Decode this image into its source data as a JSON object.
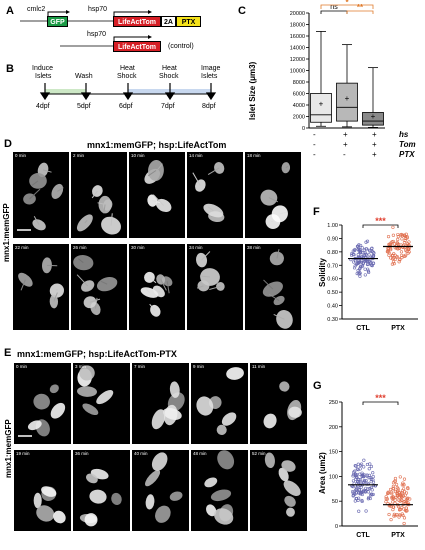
{
  "panelA": {
    "label": "A",
    "construct1": {
      "promoter1": "cmlc2",
      "box1": "GFP",
      "promoter2": "hsp70",
      "box2": "LifeActTom",
      "box3": "2A",
      "box4": "PTX"
    },
    "construct2": {
      "promoter": "hsp70",
      "box": "LifeActTom",
      "note": "(control)"
    },
    "colors": {
      "gfp": "#1a9a45",
      "tom": "#d61f26",
      "ptx": "#f5e21a",
      "twoA": "#ffffff"
    }
  },
  "panelB": {
    "label": "B",
    "steps": [
      {
        "name": "Induce\nIslets",
        "line1": "Induce",
        "line2": "Islets",
        "day": "4dpf"
      },
      {
        "name": "Wash",
        "line1": "Wash",
        "line2": "",
        "day": "5dpf"
      },
      {
        "name": "Heat Shock",
        "line1": "Heat",
        "line2": "Shock",
        "day": "6dpf"
      },
      {
        "name": "Heat Shock",
        "line1": "Heat",
        "line2": "Shock",
        "day": "7dpf"
      },
      {
        "name": "Image Islets",
        "line1": "Image",
        "line2": "Islets",
        "day": "8dpf"
      }
    ]
  },
  "panelC": {
    "label": "C",
    "ylabel": "Islet Size (μm3)",
    "sig1": "ns",
    "sig2": "**",
    "sig3": "*",
    "row_labels": [
      "hs",
      "Tom",
      "PTX"
    ],
    "row_values": [
      [
        "-",
        "+",
        "+"
      ],
      [
        "-",
        "+",
        "+"
      ],
      [
        "-",
        "-",
        "+"
      ]
    ]
  },
  "panelD": {
    "label": "D",
    "title": "mnx1:memGFP; hsp:LifeActTom",
    "side_label": "mnx1:memGFP",
    "times_row1": [
      "0 min",
      "2 min",
      "10 min",
      "14 min",
      "18 min"
    ],
    "times_row2": [
      "22 min",
      "26 min",
      "30 min",
      "34 min",
      "38 min"
    ]
  },
  "panelE": {
    "label": "E",
    "title": "mnx1:memGFP; hsp:LifeActTom-PTX",
    "side_label": "mnx1:memGFP",
    "times_row1": [
      "0 min",
      "3 min",
      "7 min",
      "9 min",
      "11 min"
    ],
    "times_row2": [
      "19 min",
      "36 min",
      "40 min",
      "48 min",
      "52 min"
    ]
  },
  "panelF": {
    "label": "F",
    "ylabel": "Solidity",
    "sig": "***",
    "groups": [
      "CTL",
      "PTX"
    ]
  },
  "panelG": {
    "label": "G",
    "ylabel": "Area (um2)",
    "sig": "***",
    "groups": [
      "CTL",
      "PTX"
    ]
  },
  "chart_data": [
    {
      "type": "box",
      "panel": "C",
      "categories": [
        "-/-/-",
        "+/+/-",
        "+/+/+"
      ],
      "series": [
        {
          "name": "",
          "min": 300,
          "q1": 1000,
          "median": 2300,
          "q3": 6000,
          "max": 16800,
          "mean": 4200
        },
        {
          "name": "",
          "min": 200,
          "q1": 1200,
          "median": 3600,
          "q3": 7800,
          "max": 14500,
          "mean": 5100
        },
        {
          "name": "",
          "min": 100,
          "q1": 500,
          "median": 1200,
          "q3": 2700,
          "max": 10500,
          "mean": 2000
        }
      ],
      "ylim": [
        0,
        20000
      ],
      "yticks": [
        0,
        2000,
        4000,
        6000,
        8000,
        10000,
        12000,
        14000,
        16000,
        18000,
        20000
      ],
      "ytick_labels": [
        "0",
        "2000",
        "4000",
        "6000",
        "8000",
        "10000",
        "12000",
        "14000",
        "16000",
        "18000",
        "20000"
      ],
      "colors": [
        "#e8e8e8",
        "#b8b8b8",
        "#8a8a8a"
      ]
    },
    {
      "type": "scatter",
      "panel": "F",
      "categories": [
        "CTL",
        "PTX"
      ],
      "ylim": [
        0.3,
        1.0
      ],
      "yticks": [
        0.3,
        0.4,
        0.5,
        0.6,
        0.7,
        0.8,
        0.9,
        1.0
      ],
      "ytick_labels": [
        "0.30",
        "0.40",
        "0.50",
        "0.60",
        "0.70",
        "0.80",
        "0.90",
        "1.00"
      ],
      "series": [
        {
          "name": "CTL",
          "color": "#6868b0",
          "median": 0.75,
          "n": 110,
          "center": 0.76,
          "spread": 0.09,
          "min": 0.45,
          "max": 0.96
        },
        {
          "name": "PTX",
          "color": "#e07050",
          "median": 0.84,
          "n": 90,
          "center": 0.84,
          "spread": 0.1,
          "min": 0.34,
          "max": 0.99
        }
      ]
    },
    {
      "type": "scatter",
      "panel": "G",
      "categories": [
        "CTL",
        "PTX"
      ],
      "ylim": [
        0,
        250
      ],
      "yticks": [
        0,
        50,
        100,
        150,
        200,
        250
      ],
      "ytick_labels": [
        "0",
        "50",
        "100",
        "150",
        "200",
        "250"
      ],
      "series": [
        {
          "name": "CTL",
          "color": "#6868b0",
          "median": 83,
          "n": 120,
          "center": 85,
          "spread": 35,
          "min": 8,
          "max": 205
        },
        {
          "name": "PTX",
          "color": "#e07050",
          "median": 43,
          "n": 110,
          "center": 55,
          "spread": 35,
          "min": 5,
          "max": 160
        }
      ]
    }
  ]
}
